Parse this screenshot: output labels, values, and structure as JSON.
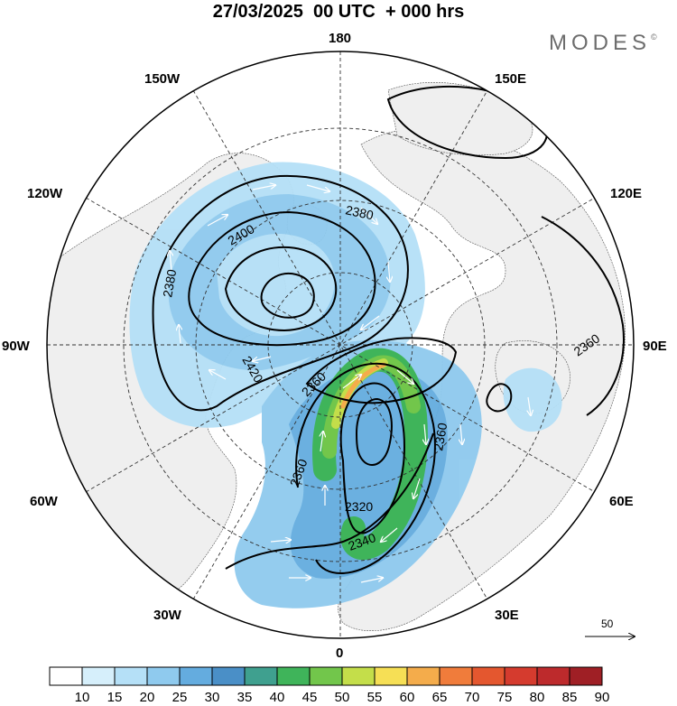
{
  "title": "27/03/2025  00 UTC  + 000 hrs",
  "brand": "MODES",
  "brand_mark": "©",
  "longitude_labels": {
    "top": "180",
    "top_left": "150W",
    "top_right": "150E",
    "upper_left": "120W",
    "upper_right": "120E",
    "left": "90W",
    "right": "90E",
    "lower_left": "60W",
    "lower_right": "60E",
    "bottom_left": "30W",
    "bottom_right": "30E",
    "bottom": "0"
  },
  "contour_labels": [
    "2380",
    "2400",
    "2380",
    "2420",
    "2360",
    "2360",
    "2320",
    "2340",
    "2360",
    "2360"
  ],
  "reference_vector": "50",
  "colorbar": {
    "levels": [
      "10",
      "15",
      "20",
      "25",
      "30",
      "35",
      "40",
      "45",
      "50",
      "55",
      "60",
      "65",
      "70",
      "75",
      "80",
      "85",
      "90"
    ],
    "colors": [
      "#ffffff",
      "#d6effb",
      "#b5e0f7",
      "#8fcaee",
      "#64acdf",
      "#4a8fc7",
      "#3fa08f",
      "#3fb45a",
      "#72c64b",
      "#c4de4a",
      "#f6df55",
      "#f4ac4b",
      "#f07c3b",
      "#e4572f",
      "#d53b2e",
      "#bd2a2c",
      "#9f1f25"
    ]
  },
  "map_colors": {
    "land": "#f0f0f0",
    "ocean": "#ffffff",
    "contour": "#000000",
    "vector": "#ffffff"
  }
}
